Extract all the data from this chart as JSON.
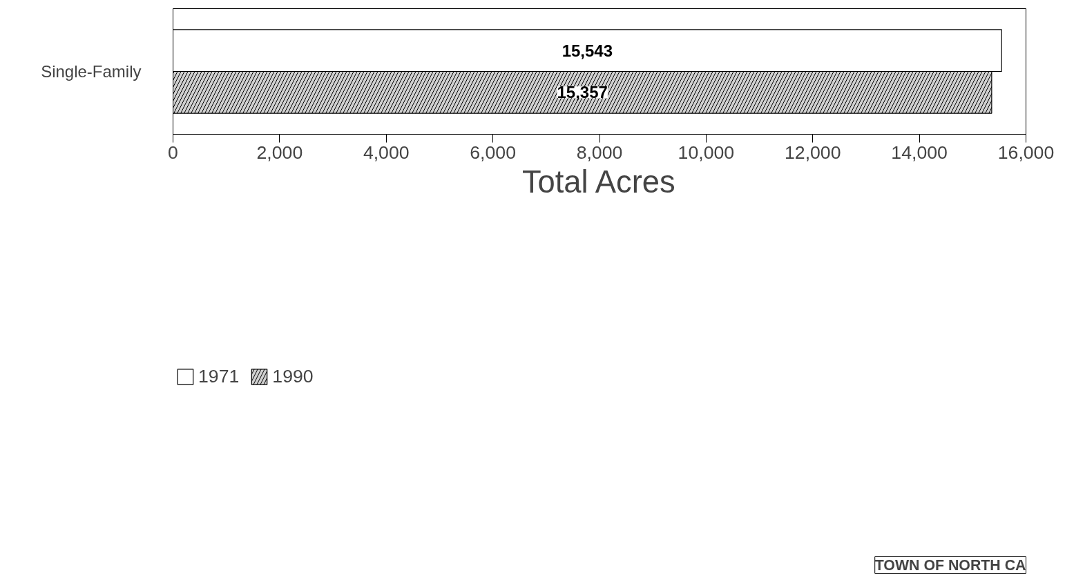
{
  "chart_data": {
    "type": "bar",
    "orientation": "horizontal",
    "categories": [
      "Single-Family"
    ],
    "series": [
      {
        "name": "1971",
        "color": "#ffffff",
        "values": [
          15543
        ],
        "value_labels": [
          "15,543"
        ]
      },
      {
        "name": "1990",
        "color": "#d0d0d0",
        "values": [
          15357
        ],
        "value_labels": [
          "15,357"
        ]
      }
    ],
    "xlabel": "Total Acres",
    "xlim": [
      0,
      16000
    ],
    "xticks": [
      0,
      {
        "value": 2000,
        "label": "2,000"
      },
      {
        "value": 4000,
        "label": "4,000"
      },
      {
        "value": 6000,
        "label": "6,000"
      },
      {
        "value": 8000,
        "label": "8,000"
      },
      {
        "value": 10000,
        "label": "10,000"
      },
      {
        "value": 12000,
        "label": "12,000"
      },
      {
        "value": 14000,
        "label": "14,000"
      },
      {
        "value": 16000,
        "label": "16,000"
      }
    ],
    "grid": false,
    "legend": "bottom left",
    "annotations": [
      "TOWN OF NORTH CA"
    ]
  }
}
